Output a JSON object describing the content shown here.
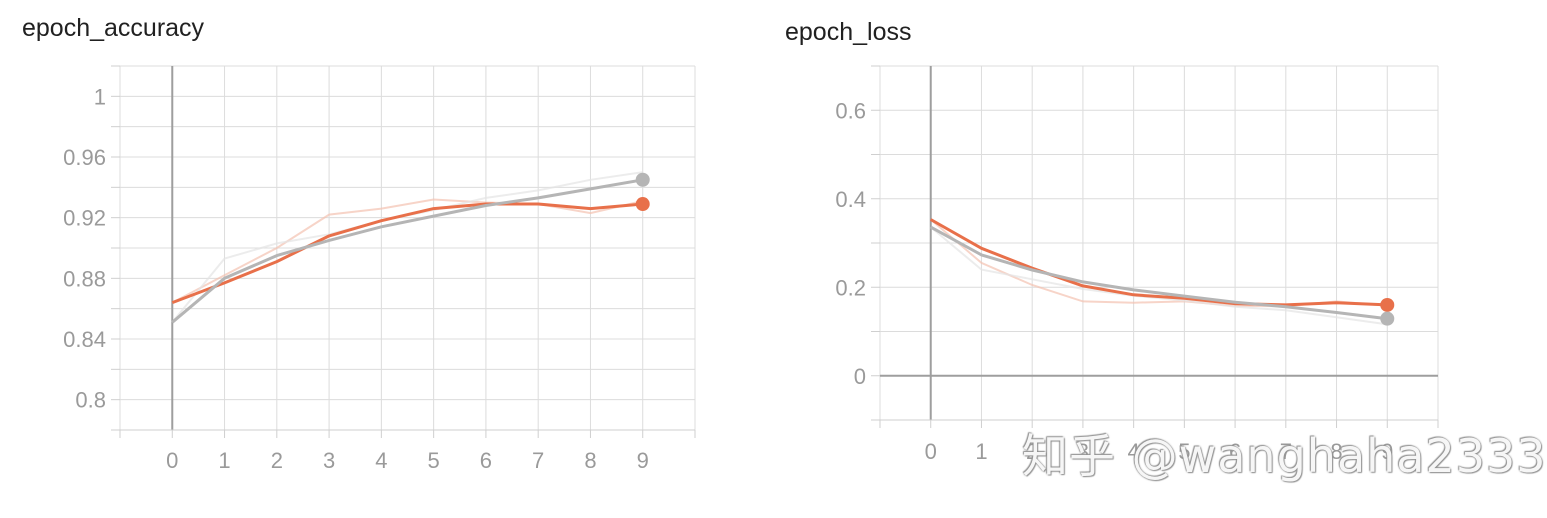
{
  "chart_data": [
    {
      "type": "line",
      "title": "epoch_accuracy",
      "xlabel": "",
      "ylabel": "",
      "x": [
        0,
        1,
        2,
        3,
        4,
        5,
        6,
        7,
        8,
        9
      ],
      "xticks": [
        "0",
        "1",
        "2",
        "3",
        "4",
        "5",
        "6",
        "7",
        "8",
        "9"
      ],
      "yticks": [
        "0.8",
        "0.84",
        "0.88",
        "0.92",
        "0.96",
        "1"
      ],
      "ytick_values": [
        0.8,
        0.84,
        0.88,
        0.92,
        0.96,
        1.0
      ],
      "xlim": [
        -1,
        10
      ],
      "ylim": [
        0.78,
        1.02
      ],
      "grid": true,
      "colors": {
        "orange": "#e8704a",
        "gray": "#b5b5b5",
        "orange_raw": "#f4c2b0",
        "gray_raw": "#e4e4e4"
      },
      "series": [
        {
          "smoothed": [
            0.864,
            0.877,
            0.891,
            0.908,
            0.918,
            0.926,
            0.929,
            0.929,
            0.926,
            0.929
          ],
          "raw": [
            0.864,
            0.882,
            0.9,
            0.922,
            0.926,
            0.932,
            0.93,
            0.929,
            0.923,
            0.931
          ],
          "color": "#e8704a"
        },
        {
          "smoothed": [
            0.851,
            0.88,
            0.895,
            0.905,
            0.914,
            0.921,
            0.928,
            0.933,
            0.939,
            0.945
          ],
          "raw": [
            0.851,
            0.893,
            0.903,
            0.909,
            0.918,
            0.925,
            0.933,
            0.938,
            0.945,
            0.95
          ],
          "color": "#b5b5b5"
        }
      ]
    },
    {
      "type": "line",
      "title": "epoch_loss",
      "xlabel": "",
      "ylabel": "",
      "x": [
        0,
        1,
        2,
        3,
        4,
        5,
        6,
        7,
        8,
        9
      ],
      "xticks": [
        "0",
        "1",
        "2",
        "3",
        "4",
        "5",
        "6",
        "7",
        "8",
        "9"
      ],
      "yticks": [
        "0",
        "0.2",
        "0.4",
        "0.6"
      ],
      "ytick_values": [
        0,
        0.2,
        0.4,
        0.6
      ],
      "xlim": [
        -1,
        10
      ],
      "ylim": [
        -0.1,
        0.7
      ],
      "grid": true,
      "colors": {
        "orange": "#e8704a",
        "gray": "#b5b5b5",
        "orange_raw": "#f4c2b0",
        "gray_raw": "#e4e4e4"
      },
      "series": [
        {
          "smoothed": [
            0.353,
            0.288,
            0.243,
            0.203,
            0.183,
            0.175,
            0.163,
            0.16,
            0.165,
            0.16
          ],
          "raw": [
            0.353,
            0.255,
            0.205,
            0.168,
            0.165,
            0.168,
            0.158,
            0.157,
            0.168,
            0.158
          ],
          "color": "#e8704a"
        },
        {
          "smoothed": [
            0.336,
            0.273,
            0.239,
            0.212,
            0.194,
            0.18,
            0.166,
            0.156,
            0.143,
            0.129
          ],
          "raw": [
            0.336,
            0.24,
            0.218,
            0.196,
            0.181,
            0.17,
            0.156,
            0.148,
            0.132,
            0.116
          ],
          "color": "#b5b5b5"
        }
      ]
    }
  ],
  "watermark": "知乎 @wanghaha2333"
}
